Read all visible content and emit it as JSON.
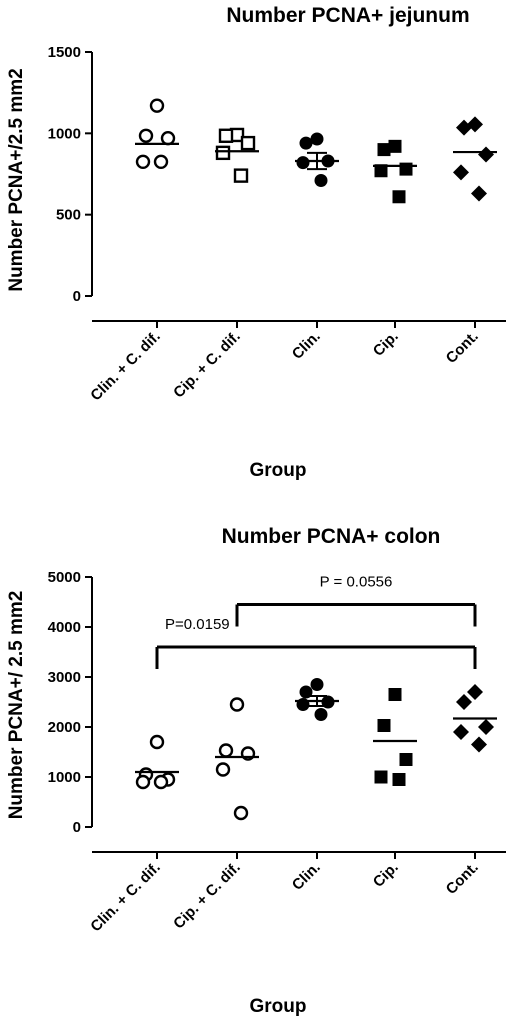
{
  "chart_data": [
    {
      "type": "scatter",
      "title": "Number PCNA+ jejunum",
      "xlabel": "Group",
      "ylabel": "Number PCNA+/2.5 mm2",
      "ylim": [
        0,
        1500
      ],
      "yticks": [
        0,
        500,
        1000,
        1500
      ],
      "categories": [
        "Clin. + C. dif.",
        "Cip. + C. dif.",
        "Clin.",
        "Cip.",
        "Cont."
      ],
      "series": [
        {
          "category": "Clin. + C. dif.",
          "marker": "open-circle",
          "points": [
            1170,
            985,
            970,
            825,
            825
          ],
          "mean": 935,
          "sem": null
        },
        {
          "category": "Cip. + C. dif.",
          "marker": "open-square",
          "points": [
            990,
            985,
            940,
            880,
            740
          ],
          "mean": 890,
          "sem": null
        },
        {
          "category": "Clin.",
          "marker": "filled-circle",
          "points": [
            965,
            940,
            830,
            820,
            710
          ],
          "mean": 830,
          "sem": 50
        },
        {
          "category": "Cip.",
          "marker": "filled-square",
          "points": [
            920,
            900,
            780,
            770,
            610
          ],
          "mean": 800,
          "sem": null
        },
        {
          "category": "Cont.",
          "marker": "filled-diamond",
          "points": [
            1055,
            1035,
            870,
            760,
            630
          ],
          "mean": 885,
          "sem": null
        }
      ]
    },
    {
      "type": "scatter",
      "title": "Number PCNA+ colon",
      "xlabel": "Group",
      "ylabel": "Number PCNA+/ 2.5 mm2",
      "ylim": [
        0,
        5000
      ],
      "yticks": [
        0,
        1000,
        2000,
        3000,
        4000,
        5000
      ],
      "categories": [
        "Clin. + C. dif.",
        "Cip. + C. dif.",
        "Clin.",
        "Cip.",
        "Cont."
      ],
      "series": [
        {
          "category": "Clin. + C. dif.",
          "marker": "open-circle",
          "points": [
            1700,
            1050,
            950,
            900,
            900
          ],
          "mean": 1100,
          "sem": null
        },
        {
          "category": "Cip. + C. dif.",
          "marker": "open-circle",
          "points": [
            2450,
            1530,
            1470,
            1150,
            280
          ],
          "mean": 1400,
          "sem": null
        },
        {
          "category": "Clin.",
          "marker": "filled-circle",
          "points": [
            2850,
            2700,
            2500,
            2450,
            2250
          ],
          "mean": 2520,
          "sem": 100
        },
        {
          "category": "Cip.",
          "marker": "filled-square",
          "points": [
            2650,
            2030,
            1350,
            1000,
            950
          ],
          "mean": 1720,
          "sem": null
        },
        {
          "category": "Cont.",
          "marker": "filled-diamond",
          "points": [
            2700,
            2500,
            2000,
            1900,
            1650
          ],
          "mean": 2170,
          "sem": null
        }
      ],
      "annotations": [
        {
          "text": "P=0.0159",
          "from": "Clin. + C. dif.",
          "to": "Cont.",
          "y": 3600
        },
        {
          "text": "P = 0.0556",
          "from": "Cip. + C. dif.",
          "to": "Cont.",
          "y": 4450
        }
      ]
    }
  ]
}
